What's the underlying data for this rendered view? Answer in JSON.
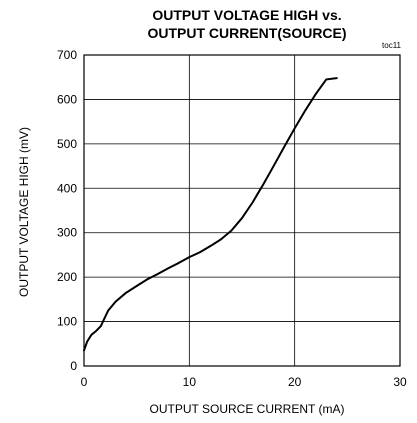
{
  "chart_data": {
    "type": "line",
    "title_line1": "OUTPUT VOLTAGE HIGH vs.",
    "title_line2": "OUTPUT CURRENT(SOURCE)",
    "tag": "toc11",
    "xlabel": "OUTPUT SOURCE CURRENT (mA)",
    "ylabel": "OUTPUT VOLTAGE HIGH (mV)",
    "xlim": [
      0,
      30
    ],
    "ylim": [
      0,
      700
    ],
    "x_ticks": [
      0,
      10,
      20,
      30
    ],
    "y_ticks": [
      0,
      100,
      200,
      300,
      400,
      500,
      600,
      700
    ],
    "grid": true,
    "series": [
      {
        "x": [
          0,
          0.3,
          0.7,
          1.2,
          1.6,
          1.9,
          2.3,
          3,
          4,
          5,
          6,
          7,
          8,
          9,
          10,
          11,
          12,
          13,
          14,
          15,
          16,
          17,
          18,
          19,
          20,
          21,
          22,
          23,
          24
        ],
        "y": [
          35,
          55,
          70,
          80,
          90,
          105,
          125,
          145,
          165,
          180,
          195,
          207,
          220,
          232,
          245,
          256,
          270,
          285,
          305,
          333,
          368,
          408,
          450,
          493,
          535,
          575,
          612,
          645,
          648
        ],
        "color": "#000000"
      }
    ]
  }
}
